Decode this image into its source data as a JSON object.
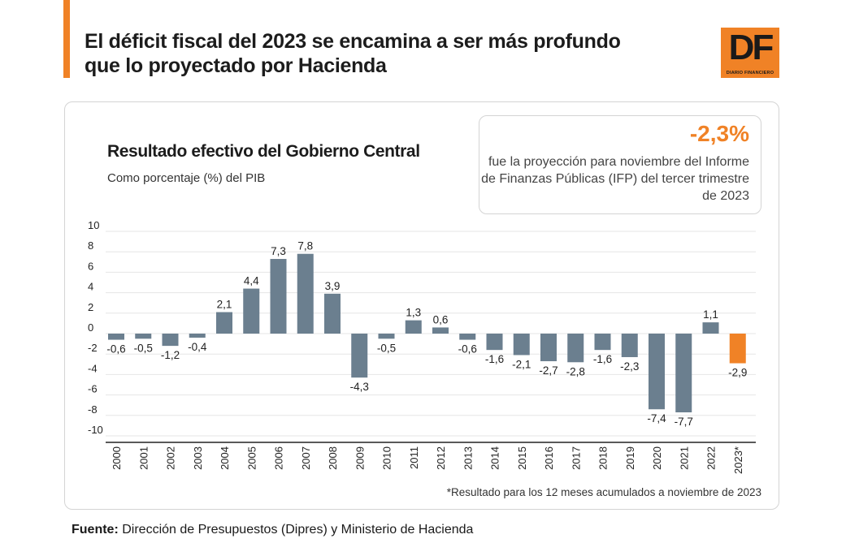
{
  "header": {
    "headline": "El déficit fiscal del 2023 se encamina a ser más profundo que lo proyectado por Hacienda"
  },
  "logo": {
    "letters": "DF",
    "subtitle": "DIARIO FINANCIERO"
  },
  "callout": {
    "value": "-2,3%",
    "text": "fue la proyección para noviembre del Informe de Finanzas Públicas (IFP) del tercer trimestre de 2023"
  },
  "footnote": "*Resultado para los 12 meses acumulados a noviembre de 2023",
  "source": {
    "label": "Fuente:",
    "text": "Dirección de Presupuestos (Dipres) y Ministerio de Hacienda"
  },
  "colors": {
    "bar": "#6b7f8f",
    "highlight": "#f08226",
    "grid": "#e6e6e6",
    "axis": "#222222"
  },
  "chart_data": {
    "type": "bar",
    "title": "Resultado efectivo del Gobierno Central",
    "subtitle": "Como porcentaje (%) del PIB",
    "xlabel": "",
    "ylabel": "",
    "ylim": [
      -10,
      10
    ],
    "yticks": [
      "10",
      "8",
      "6",
      "4",
      "2",
      "0",
      "-2",
      "-4",
      "-6",
      "-8",
      "-10"
    ],
    "ytick_values": [
      10,
      8,
      6,
      4,
      2,
      0,
      -2,
      -4,
      -6,
      -8,
      -10
    ],
    "categories": [
      "2000",
      "2001",
      "2002",
      "2003",
      "2004",
      "2005",
      "2006",
      "2007",
      "2008",
      "2009",
      "2010",
      "2011",
      "2012",
      "2013",
      "2014",
      "2015",
      "2016",
      "2017",
      "2018",
      "2019",
      "2020",
      "2021",
      "2022",
      "2023*"
    ],
    "values": [
      -0.6,
      -0.5,
      -1.2,
      -0.4,
      2.1,
      4.4,
      7.3,
      7.8,
      3.9,
      -4.3,
      -0.5,
      1.3,
      0.6,
      -0.6,
      -1.6,
      -2.1,
      -2.7,
      -2.8,
      -1.6,
      -2.3,
      -7.4,
      -7.7,
      1.1,
      -2.9
    ],
    "labels": [
      "-0,6",
      "-0,5",
      "-1,2",
      "-0,4",
      "2,1",
      "4,4",
      "7,3",
      "7,8",
      "3,9",
      "-4,3",
      "-0,5",
      "1,3",
      "0,6",
      "-0,6",
      "-1,6",
      "-2,1",
      "-2,7",
      "-2,8",
      "-1,6",
      "-2,3",
      "-7,4",
      "-7,7",
      "1,1",
      "-2,9"
    ],
    "highlight": [
      "2023*"
    ],
    "grid": true
  }
}
